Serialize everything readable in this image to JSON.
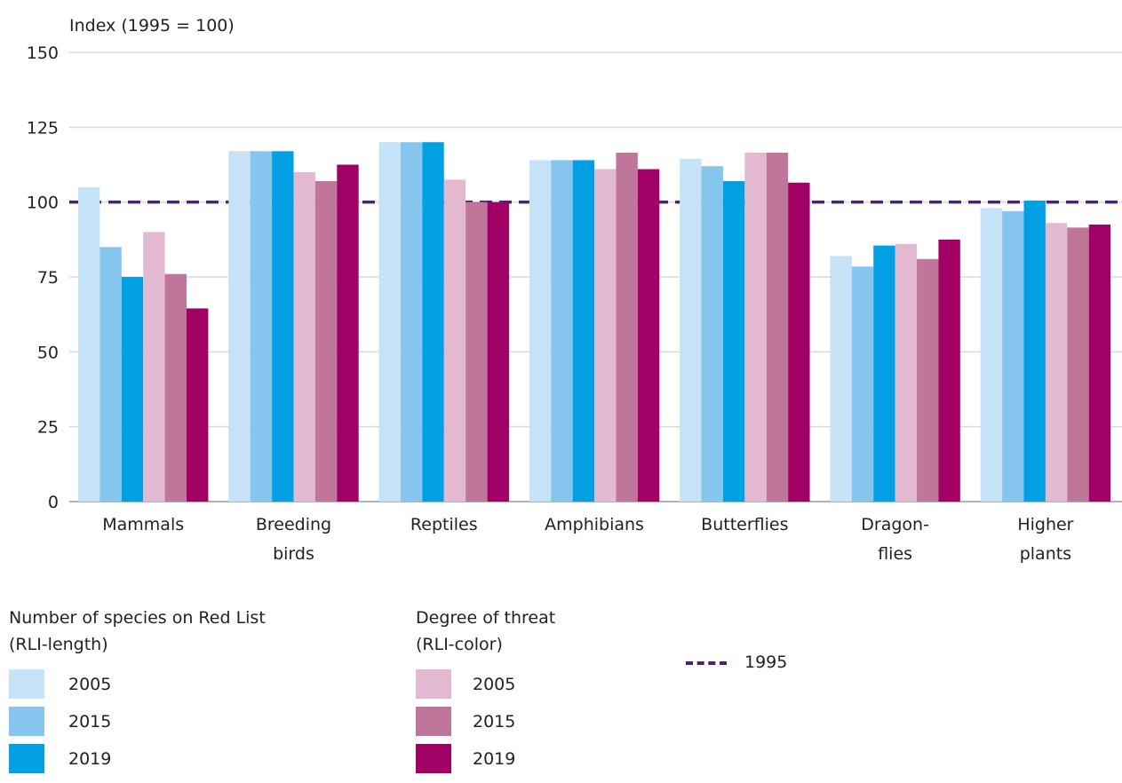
{
  "chart_data": {
    "type": "bar",
    "ylabel": "Index (1995 = 100)",
    "ylim": [
      0,
      150
    ],
    "yticks": [
      "0",
      "25",
      "50",
      "75",
      "100",
      "125",
      "150"
    ],
    "grid": true,
    "categories": [
      [
        "Mammals"
      ],
      [
        "Breeding",
        "birds"
      ],
      [
        "Reptiles"
      ],
      [
        "Amphibians"
      ],
      [
        "Butterflies"
      ],
      [
        "Dragon-",
        "flies"
      ],
      [
        "Higher",
        "plants"
      ]
    ],
    "series": [
      {
        "name": "2005",
        "group": "Number of species on Red List (RLI-length)",
        "color": "#c5e2f7",
        "values": [
          105,
          117,
          120,
          114,
          114.5,
          82,
          98
        ]
      },
      {
        "name": "2015",
        "group": "Number of species on Red List (RLI-length)",
        "color": "#86c5ee",
        "values": [
          85,
          117,
          120,
          114,
          112,
          78.5,
          97
        ]
      },
      {
        "name": "2019",
        "group": "Number of species on Red List (RLI-length)",
        "color": "#00a0e2",
        "values": [
          75,
          117,
          120,
          114,
          107,
          85.5,
          100.5
        ]
      },
      {
        "name": "2005",
        "group": "Degree of threat (RLI-color)",
        "color": "#e3b9d1",
        "values": [
          90,
          110,
          107.5,
          111,
          116.5,
          86,
          93
        ]
      },
      {
        "name": "2015",
        "group": "Degree of threat (RLI-color)",
        "color": "#c0769b",
        "values": [
          76,
          107,
          100,
          116.5,
          116.5,
          81,
          91.5
        ]
      },
      {
        "name": "2019",
        "group": "Degree of threat (RLI-color)",
        "color": "#a10064",
        "values": [
          64.5,
          112.5,
          100,
          111,
          106.5,
          87.5,
          92.5
        ]
      }
    ],
    "reference_line": {
      "name": "1995",
      "value": 100,
      "color": "#4b2470",
      "style": "dashed"
    },
    "legend": {
      "placement": "bottom",
      "group_1_title": [
        "Number of species on Red List",
        "(RLI-length)"
      ],
      "group_2_title": [
        "Degree of threat",
        "(RLI-color)"
      ],
      "line_label": "1995"
    }
  }
}
